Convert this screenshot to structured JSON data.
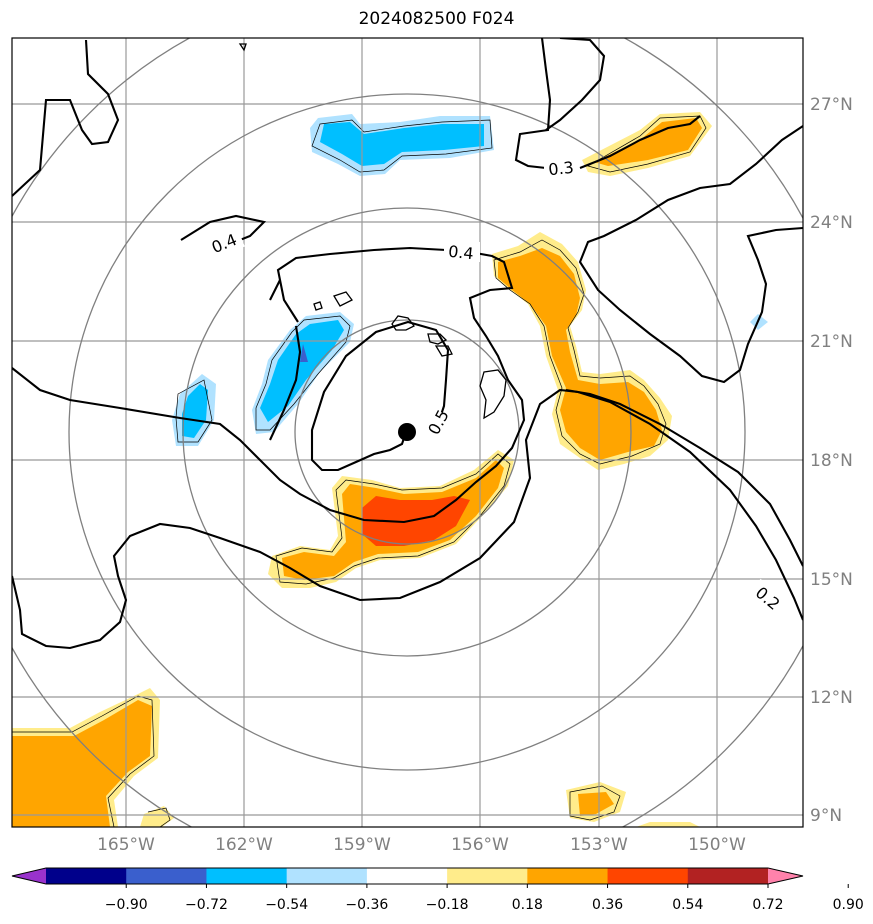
{
  "title": "2024082500 F024",
  "longitude_labels": [
    "165°W",
    "162°W",
    "159°W",
    "156°W",
    "153°W",
    "150°W"
  ],
  "latitude_labels": [
    "27°N",
    "24°N",
    "21°N",
    "18°N",
    "15°N",
    "12°N",
    "9°N"
  ],
  "contour_labels": [
    "0.4",
    "0.4",
    "0.3",
    "0.5",
    "0.2"
  ],
  "colorbar": {
    "ticks": [
      "−0.90",
      "−0.72",
      "−0.54",
      "−0.36",
      "−0.18",
      "0.18",
      "0.36",
      "0.54",
      "0.72",
      "0.90"
    ],
    "colors": [
      "#9932cc",
      "#00008b",
      "#3a5fcd",
      "#00bfff",
      "#b0e2ff",
      "#ffffff",
      "#ffec8b",
      "#ffa500",
      "#ff4500",
      "#b22222",
      "#ff82ab"
    ]
  },
  "colors": {
    "contour": "#000000",
    "grid": "#999999",
    "range_ring": "#808080",
    "coast": "#000000",
    "center_marker": "#000000"
  }
}
